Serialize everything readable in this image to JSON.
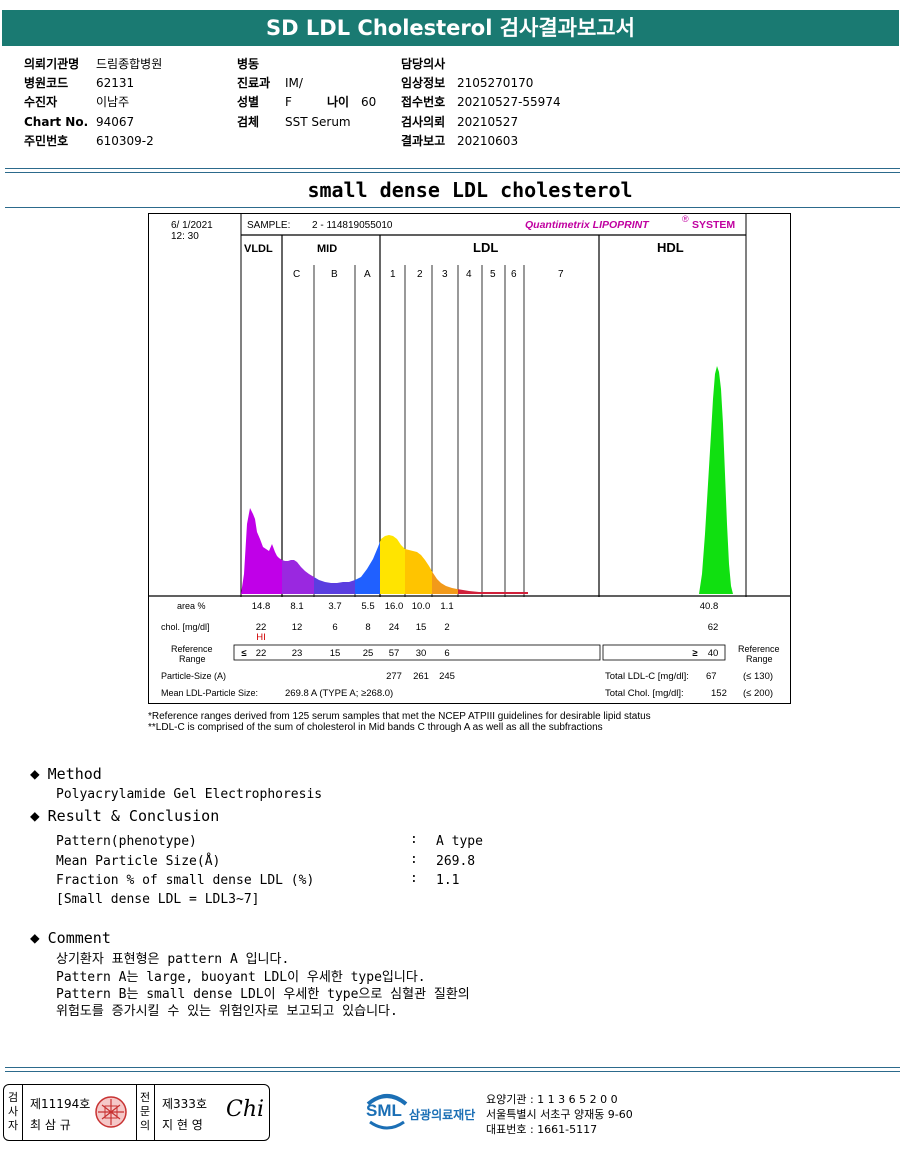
{
  "header": {
    "title": "SD LDL Cholesterol 검사결과보고서"
  },
  "info": {
    "col1": [
      {
        "k": "의뢰기관명",
        "v": "드림종합병원"
      },
      {
        "k": "병원코드",
        "v": "62131"
      },
      {
        "k": "수진자",
        "v": "이남주"
      },
      {
        "k": "Chart No.",
        "v": "94067"
      },
      {
        "k": "주민번호",
        "v": "610309-2"
      }
    ],
    "col2": [
      {
        "k": "병동",
        "v": ""
      },
      {
        "k": "진료과",
        "v": "IM/"
      },
      {
        "k": "성별",
        "v": "F"
      },
      {
        "k": "검체",
        "v": "SST Serum"
      }
    ],
    "age_label": "나이",
    "age_value": "60",
    "col3": [
      {
        "k": "담당의사",
        "v": ""
      },
      {
        "k": "임상정보",
        "v": "2105270170"
      },
      {
        "k": "접수번호",
        "v": "20210527-55974"
      },
      {
        "k": "검사의뢰",
        "v": "20210527"
      },
      {
        "k": "결과보고",
        "v": "20210603"
      }
    ]
  },
  "report_title": "small dense LDL cholesterol",
  "chart": {
    "date": "6/  1/2021",
    "time": "12: 30",
    "sample_label": "SAMPLE:",
    "sample_value": "2 - 114819055010",
    "system_brand": "Quantimetrix LIPOPRINT",
    "system_mark": "®",
    "system_suffix": "SYSTEM",
    "group_labels": [
      "VLDL",
      "MID",
      "LDL",
      "HDL"
    ],
    "bands": [
      "C",
      "B",
      "A",
      "1",
      "2",
      "3",
      "4",
      "5",
      "6",
      "7"
    ],
    "row_labels": {
      "area": "area %",
      "chol": "chol. [mg/dl]",
      "ref1": "Reference",
      "ref2": "Range",
      "ref_right1": "Reference",
      "ref_right2": "Range",
      "particle": "Particle-Size (A)",
      "mean": "Mean LDL-Particle Size:"
    },
    "area": [
      "14.8",
      "8.1",
      "3.7",
      "5.5",
      "16.0",
      "10.0",
      "1.1",
      "40.8"
    ],
    "chol": [
      "22",
      "12",
      "6",
      "8",
      "24",
      "15",
      "2",
      "62"
    ],
    "hi_flag": "HI",
    "ref_le": "≤",
    "ref": [
      "22",
      "23",
      "15",
      "25",
      "57",
      "30",
      "6"
    ],
    "ref_hdl_ge": "≥",
    "ref_hdl": "40",
    "particle_sizes": [
      "277",
      "261",
      "245"
    ],
    "mean_value": "269.8  A   (TYPE A; ≥268.0)",
    "total_ldl_label": "Total LDL-C [mg/dl]:",
    "total_ldl_value": "67",
    "total_ldl_ref": "(≤ 130)",
    "total_chol_label": "Total Chol. [mg/dl]:",
    "total_chol_value": "152",
    "total_chol_ref": "(≤ 200)",
    "colors": {
      "vldl": "#c000e8",
      "mid_c": "#9a28e0",
      "mid_b": "#5a3ee0",
      "mid_a": "#2060ff",
      "ldl1": "#ffe400",
      "ldl2": "#ffc400",
      "ldl3": "#f29a1a",
      "ldl4": "#d0203a",
      "hdl": "#10e010",
      "brand": "#c000a0"
    }
  },
  "chart_data": {
    "type": "area",
    "title": "",
    "xlabel": "",
    "ylabel": "",
    "categories": [
      "VLDL",
      "MID C",
      "MID B",
      "MID A",
      "LDL 1",
      "LDL 2",
      "LDL 3",
      "LDL 4-7",
      "HDL"
    ],
    "series": [
      {
        "name": "area %",
        "values": [
          14.8,
          8.1,
          3.7,
          5.5,
          16.0,
          10.0,
          1.1,
          null,
          40.8
        ]
      },
      {
        "name": "chol. [mg/dl]",
        "values": [
          22,
          12,
          6,
          8,
          24,
          15,
          2,
          null,
          62
        ]
      }
    ]
  },
  "footnotes": [
    "*Reference ranges derived from 125 serum samples that met the NCEP ATPIII guidelines for desirable lipid status",
    "**LDL-C is comprised of the sum of cholesterol in Mid bands C through A as well as all the subfractions"
  ],
  "method": {
    "heading": "Method",
    "text": "Polyacrylamide Gel Electrophoresis"
  },
  "result": {
    "heading": "Result & Conclusion",
    "rows": [
      {
        "k": "Pattern(phenotype)",
        "v": "A type"
      },
      {
        "k": "Mean Particle Size(Å)",
        "v": "269.8"
      },
      {
        "k": "Fraction % of small dense LDL (%)",
        "v": "1.1"
      }
    ],
    "colon": ":",
    "note": "[Small dense LDL = LDL3~7]"
  },
  "comment": {
    "heading": "Comment",
    "lines": [
      "상기환자 표현형은 pattern A 입니다.",
      "Pattern A는 large, buoyant LDL이 우세한 type입니다.",
      "Pattern B는 small dense LDL이 우세한 type으로 심혈관 질환의",
      "위험도를 증가시킬 수 있는 위험인자로 보고되고 있습니다."
    ]
  },
  "signature": {
    "left_tag": "검사자",
    "left_no": "제11194호",
    "left_name": "최 삼 규",
    "right_tag": "전문의",
    "right_no": "제333호",
    "right_name": "지 현 영",
    "sign": "Chi"
  },
  "org": {
    "logo": "SML",
    "name": "삼광의료재단",
    "lines": [
      "요양기관 : 1 1 3 6 5 2 0 0",
      "서울특별시 서초구 양재동 9-60",
      "대표번호 : 1661-5117"
    ]
  }
}
